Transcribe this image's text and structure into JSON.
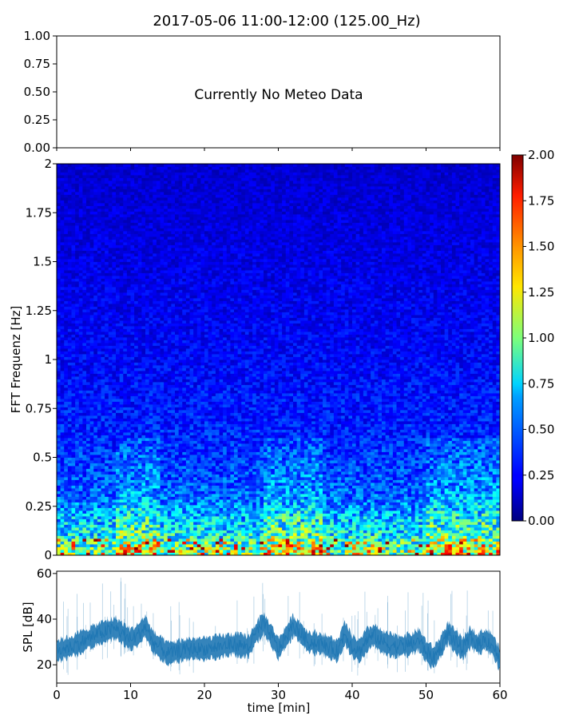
{
  "title": "2017-05-06 11:00-12:00 (125.00_Hz)",
  "chart_data": [
    {
      "type": "line",
      "panel": "meteo",
      "annotation": "Currently No Meteo Data",
      "ylim": [
        0,
        1
      ],
      "yticks": [
        "0.00",
        "0.25",
        "0.50",
        "0.75",
        "1.00"
      ],
      "xlim": [
        0,
        60
      ],
      "series": []
    },
    {
      "type": "heatmap",
      "panel": "spectrogram",
      "ylabel": "FFT Frequenz [Hz]",
      "ylim": [
        0,
        2
      ],
      "yticks": [
        "0",
        "0.25",
        "0.5",
        "0.75",
        "1",
        "1.25",
        "1.5",
        "1.75",
        "2"
      ],
      "xlim": [
        0,
        60
      ],
      "colormap": "jet",
      "colorbar": {
        "vmin": 0,
        "vmax": 2,
        "ticks": [
          "0.00",
          "0.25",
          "0.50",
          "0.75",
          "1.00",
          "1.25",
          "1.50",
          "1.75",
          "2.00"
        ]
      },
      "approx_level_by_frequency": [
        {
          "freq_hz": 0.02,
          "level": 1.0
        },
        {
          "freq_hz": 0.1,
          "level": 0.75
        },
        {
          "freq_hz": 0.3,
          "level": 0.45
        },
        {
          "freq_hz": 0.6,
          "level": 0.32
        },
        {
          "freq_hz": 1.0,
          "level": 0.25
        },
        {
          "freq_hz": 1.5,
          "level": 0.2
        },
        {
          "freq_hz": 2.0,
          "level": 0.16
        }
      ]
    },
    {
      "type": "line",
      "panel": "spl",
      "xlabel": "time [min]",
      "ylabel": "SPL [dB]",
      "xlim": [
        0,
        60
      ],
      "ylim": [
        12,
        61
      ],
      "xticks": [
        "0",
        "10",
        "20",
        "30",
        "40",
        "50",
        "60"
      ],
      "yticks": [
        "20",
        "40",
        "60"
      ],
      "color": "#1f77b4",
      "series": [
        {
          "x": [
            0,
            2,
            4,
            6,
            8,
            10,
            11,
            12,
            13,
            15,
            18,
            20,
            22,
            24,
            26,
            27,
            28,
            29,
            30,
            31,
            32,
            33,
            34,
            36,
            38,
            39,
            40,
            41,
            42,
            43,
            44,
            46,
            48,
            49,
            50,
            51,
            52,
            53,
            54,
            55,
            56,
            57,
            58,
            59,
            60
          ],
          "y": [
            26,
            28,
            31,
            34,
            36,
            31,
            33,
            37,
            30,
            25,
            27,
            27,
            28,
            29,
            28,
            34,
            38,
            33,
            27,
            32,
            37,
            34,
            30,
            29,
            26,
            34,
            28,
            26,
            31,
            33,
            30,
            28,
            29,
            31,
            26,
            23,
            28,
            34,
            30,
            27,
            32,
            29,
            31,
            29,
            22
          ]
        }
      ]
    }
  ]
}
